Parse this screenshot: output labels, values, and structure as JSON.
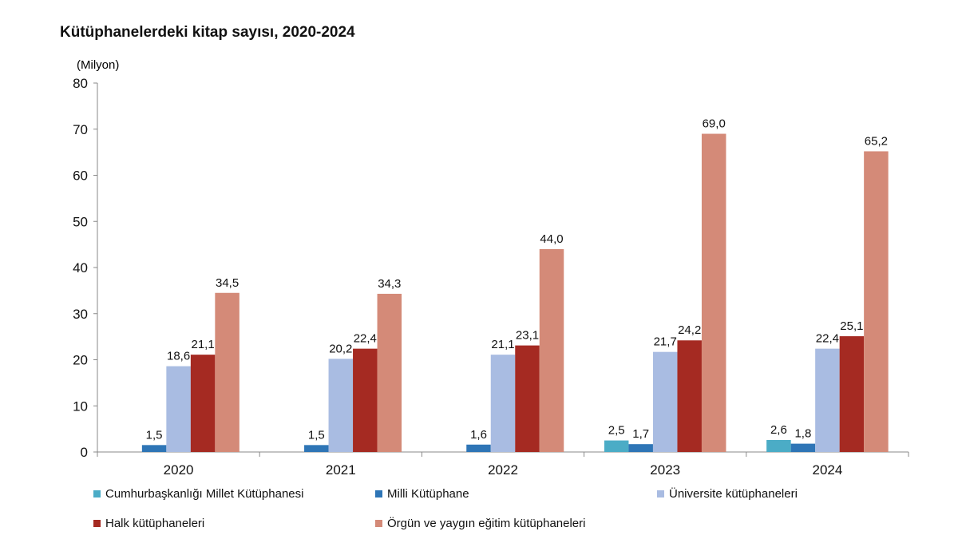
{
  "chart_data": {
    "type": "bar",
    "title": "Kütüphanelerdeki kitap sayısı, 2020-2024",
    "ylabel": "(Milyon)",
    "xlabel": "",
    "categories": [
      "2020",
      "2021",
      "2022",
      "2023",
      "2024"
    ],
    "ylim": [
      0,
      80
    ],
    "yticks": [
      0,
      10,
      20,
      30,
      40,
      50,
      60,
      70,
      80
    ],
    "legend_position": "bottom",
    "grid": false,
    "series": [
      {
        "name": "Cumhurbaşkanlığı Millet Kütüphanesi",
        "color": "#4bacc6",
        "values": [
          null,
          null,
          null,
          2.5,
          2.6
        ],
        "labels": [
          "",
          "",
          "",
          "2,5",
          "2,6"
        ]
      },
      {
        "name": "Milli Kütüphane",
        "color": "#2e75b6",
        "values": [
          1.5,
          1.5,
          1.6,
          1.7,
          1.8
        ],
        "labels": [
          "1,5",
          "1,5",
          "1,6",
          "1,7",
          "1,8"
        ]
      },
      {
        "name": "Üniversite kütüphaneleri",
        "color": "#a9bce2",
        "values": [
          18.6,
          20.2,
          21.1,
          21.7,
          22.4
        ],
        "labels": [
          "18,6",
          "20,2",
          "21,1",
          "21,7",
          "22,4"
        ]
      },
      {
        "name": "Halk kütüphaneleri",
        "color": "#a52a22",
        "values": [
          21.1,
          22.4,
          23.1,
          24.2,
          25.1
        ],
        "labels": [
          "21,1",
          "22,4",
          "23,1",
          "24,2",
          "25,1"
        ]
      },
      {
        "name": "Örgün ve yaygın eğitim kütüphaneleri",
        "color": "#d48a78",
        "values": [
          34.5,
          34.3,
          44.0,
          69.0,
          65.2
        ],
        "labels": [
          "34,5",
          "34,3",
          "44,0",
          "69,0",
          "65,2"
        ]
      }
    ]
  }
}
